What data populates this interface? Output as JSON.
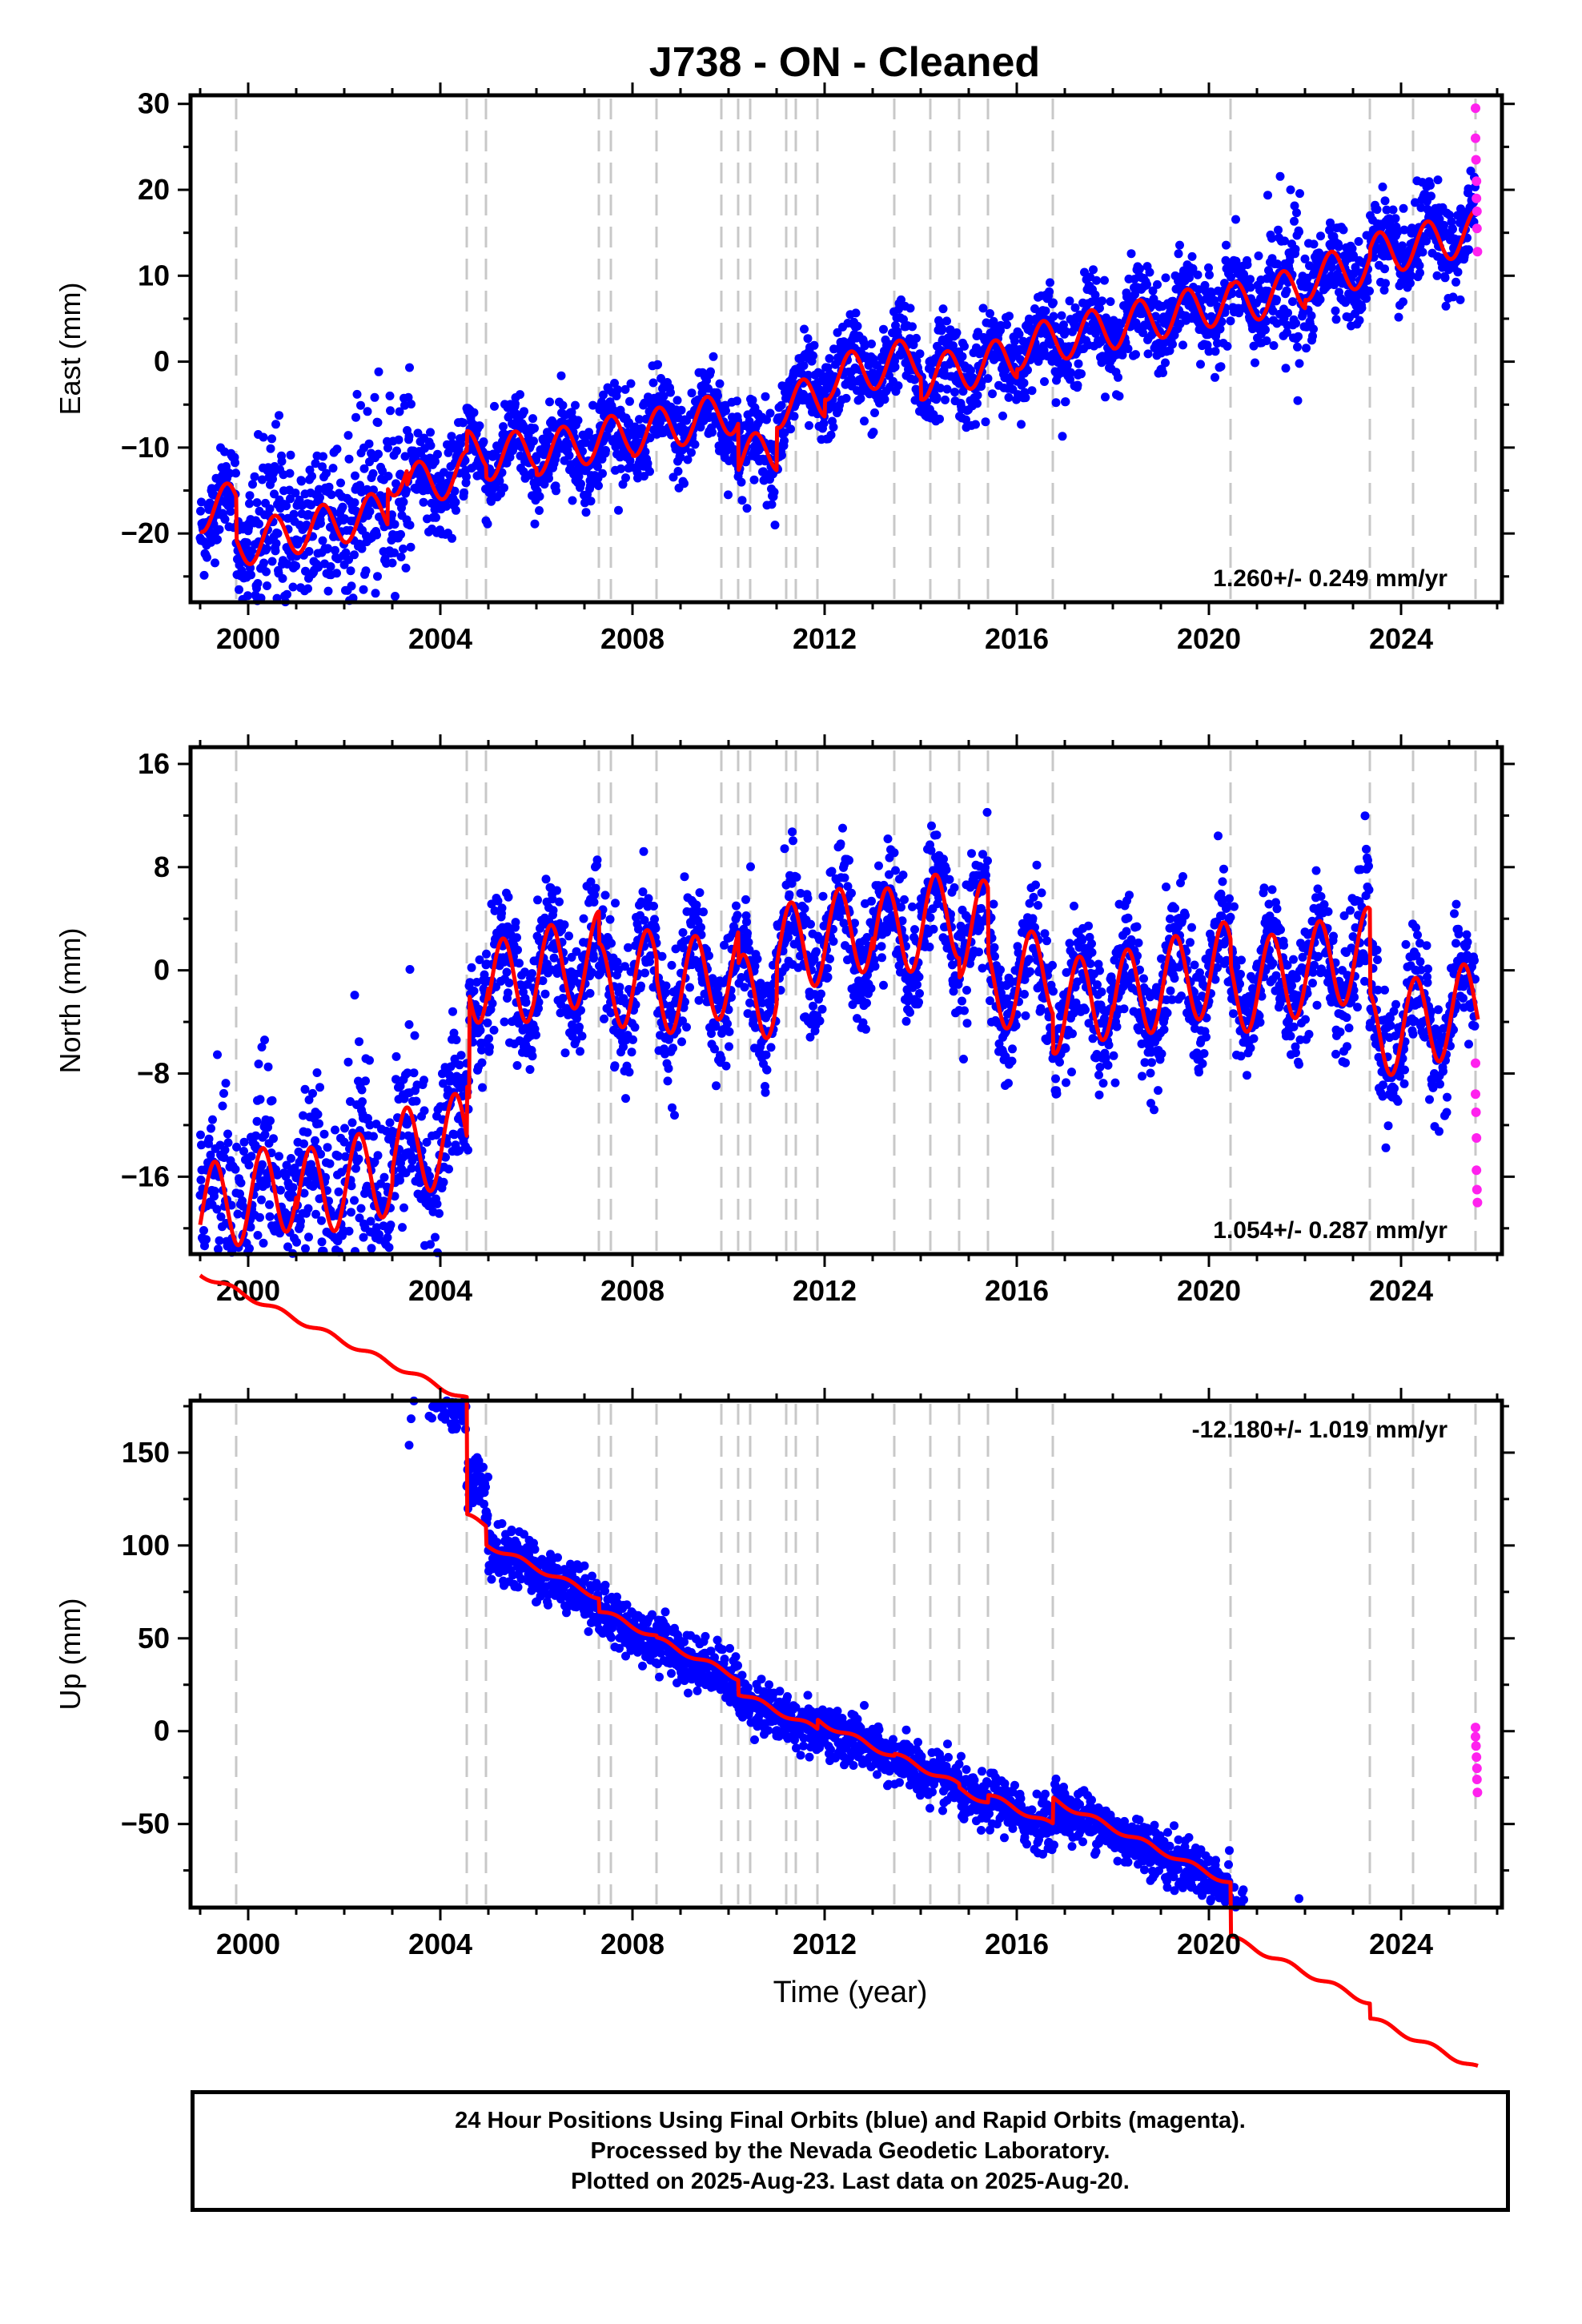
{
  "title": "J738  - ON - Cleaned",
  "x_axis_label": "Time (year)",
  "x_ticks": [
    "2000",
    "2004",
    "2008",
    "2012",
    "2016",
    "2020",
    "2024"
  ],
  "footer": {
    "line1": "24 Hour Positions Using Final Orbits (blue) and Rapid Orbits (magenta).",
    "line2": "Processed by the Nevada Geodetic Laboratory.",
    "line3": "Plotted on 2025-Aug-23. Last data on 2025-Aug-20."
  },
  "colors": {
    "final_orbits": "#0000ff",
    "rapid_orbits": "#ff22ee",
    "model": "#ff0000",
    "step_lines": "#c8c8c8"
  },
  "chart_data": [
    {
      "type": "scatter",
      "panel": "east",
      "ylabel": "East (mm)",
      "xlim": [
        1998.8,
        2026.1
      ],
      "ylim": [
        -28,
        31
      ],
      "y_ticks": [
        30,
        20,
        10,
        0,
        -10,
        -20
      ],
      "rate_label": "1.260+/- 0.249 mm/yr",
      "rate_position": "bottom-right",
      "step_epochs": [
        1999.75,
        2004.55,
        2004.95,
        2007.3,
        2007.55,
        2008.5,
        2009.85,
        2010.2,
        2010.45,
        2011.2,
        2011.4,
        2011.85,
        2013.45,
        2014.2,
        2014.8,
        2015.4,
        2016.75,
        2020.45,
        2023.35,
        2024.25,
        2025.55
      ],
      "trend": {
        "rate": 1.26,
        "amp": 2.5,
        "phase": 0.3,
        "offsets": [
          [
            1999.0,
            -1.0
          ],
          [
            1999.75,
            -6.0
          ],
          [
            2002.9,
            -1.8
          ],
          [
            2003.3,
            -3.5
          ],
          [
            2004.55,
            -1.2
          ],
          [
            2004.95,
            -2.5
          ],
          [
            2006.0,
            -3.2
          ],
          [
            2008.0,
            -3.5
          ],
          [
            2010.2,
            -9.0
          ],
          [
            2011.0,
            -4.0
          ],
          [
            2012.0,
            -2.0
          ],
          [
            2014.0,
            -4.5
          ],
          [
            2016.0,
            -3.5
          ],
          [
            2018.0,
            -3.6
          ],
          [
            2020.45,
            -4.0
          ],
          [
            2022.0,
            -3.0
          ],
          [
            2023.35,
            -2.0
          ],
          [
            2025.6,
            -0.5
          ]
        ]
      },
      "noise": 2.5,
      "noisy_segments": [
        [
          2000.0,
          2003.4,
          5.5
        ],
        [
          2021.2,
          2021.9,
          5.0
        ]
      ],
      "rapid_points": [
        [
          2025.55,
          29.5
        ],
        [
          2025.55,
          26.0
        ],
        [
          2025.56,
          23.5
        ],
        [
          2025.57,
          21.0
        ],
        [
          2025.57,
          19.0
        ],
        [
          2025.58,
          17.5
        ],
        [
          2025.58,
          15.5
        ],
        [
          2025.59,
          12.8
        ]
      ]
    },
    {
      "type": "scatter",
      "panel": "north",
      "ylabel": "North (mm)",
      "xlim": [
        1998.8,
        2026.1
      ],
      "ylim": [
        -22,
        17.3
      ],
      "y_ticks": [
        16,
        8,
        0,
        -8,
        -16
      ],
      "rate_label": "1.054+/- 0.287 mm/yr",
      "rate_position": "bottom-right",
      "step_epochs": [
        1999.75,
        2004.55,
        2004.95,
        2007.3,
        2007.55,
        2008.5,
        2009.85,
        2010.2,
        2010.45,
        2011.2,
        2011.4,
        2011.85,
        2013.45,
        2014.2,
        2014.8,
        2015.4,
        2016.75,
        2020.45,
        2023.35,
        2024.25,
        2025.55
      ],
      "trend": {
        "rate": 1.05,
        "amp": 3.5,
        "phase": 0.05,
        "offsets": [
          [
            1999.0,
            -5.0
          ],
          [
            2001.0,
            -6.0
          ],
          [
            2003.0,
            -5.0
          ],
          [
            2004.55,
            -1.0
          ],
          [
            2004.6,
            7.0
          ],
          [
            2005.0,
            6.0
          ],
          [
            2007.3,
            3.5
          ],
          [
            2008.5,
            2.0
          ],
          [
            2010.2,
            -0.5
          ],
          [
            2011.0,
            2.5
          ],
          [
            2013.0,
            1.5
          ],
          [
            2014.8,
            0.0
          ],
          [
            2015.4,
            -5.0
          ],
          [
            2016.75,
            -8.0
          ],
          [
            2018.0,
            -8.5
          ],
          [
            2020.45,
            -10.5
          ],
          [
            2023.35,
            -17.0
          ],
          [
            2025.6,
            -18.0
          ]
        ]
      },
      "noise": 2.3,
      "noisy_segments": [
        [
          1999.0,
          2003.4,
          4.0
        ],
        [
          2003.4,
          2004.6,
          3.0
        ]
      ],
      "rapid_points": [
        [
          2025.55,
          -7.2
        ],
        [
          2025.55,
          -9.6
        ],
        [
          2025.56,
          -11.0
        ],
        [
          2025.57,
          -13.0
        ],
        [
          2025.57,
          -15.5
        ],
        [
          2025.58,
          -17.0
        ],
        [
          2025.59,
          -18.0
        ]
      ]
    },
    {
      "type": "scatter",
      "panel": "up",
      "ylabel": "Up (mm)",
      "xlim": [
        1998.8,
        2026.1
      ],
      "ylim": [
        -95,
        178
      ],
      "y_ticks": [
        150,
        100,
        50,
        0,
        -50
      ],
      "rate_label": "-12.180+/- 1.019 mm/yr",
      "rate_position": "top-right",
      "step_epochs": [
        1999.75,
        2004.55,
        2004.95,
        2007.3,
        2007.55,
        2008.5,
        2009.85,
        2010.2,
        2010.45,
        2011.2,
        2011.4,
        2011.85,
        2013.45,
        2014.2,
        2014.8,
        2015.4,
        2016.75,
        2020.45,
        2023.35,
        2024.25,
        2025.55
      ],
      "trend": {
        "rate": -12.18,
        "amp": 1.5,
        "phase": 0.4,
        "offsets": [
          [
            1999.0,
            88.0
          ],
          [
            2004.55,
            25.0
          ],
          [
            2004.95,
            15.0
          ],
          [
            2007.3,
            8.0
          ],
          [
            2008.5,
            7.0
          ],
          [
            2010.2,
            -1.0
          ],
          [
            2011.85,
            4.0
          ],
          [
            2013.45,
            5.0
          ],
          [
            2014.8,
            3.0
          ],
          [
            2015.4,
            7.0
          ],
          [
            2016.75,
            21.0
          ],
          [
            2020.45,
            -8.0
          ],
          [
            2023.35,
            -16.0
          ],
          [
            2025.6,
            -30.0
          ]
        ]
      },
      "data_offsets": [
        [
          1999.0,
          8.0
        ],
        [
          2000.0,
          28.0
        ],
        [
          2001.5,
          45.0
        ],
        [
          2003.3,
          55.0
        ],
        [
          2003.35,
          -5.0
        ],
        [
          2004.55,
          20.0
        ],
        [
          2005.0,
          -2.0
        ],
        [
          2020.45,
          10.0
        ],
        [
          2020.9,
          0.0
        ]
      ],
      "noise": 7.0,
      "noisy_segments": [
        [
          1999.0,
          2003.4,
          15.0
        ],
        [
          2021.6,
          2022.0,
          18.0
        ]
      ],
      "rapid_points": [
        [
          2025.55,
          2.0
        ],
        [
          2025.55,
          -3.0
        ],
        [
          2025.56,
          -8.0
        ],
        [
          2025.57,
          -14.0
        ],
        [
          2025.58,
          -20.0
        ],
        [
          2025.58,
          -26.0
        ],
        [
          2025.59,
          -33.0
        ]
      ]
    }
  ]
}
